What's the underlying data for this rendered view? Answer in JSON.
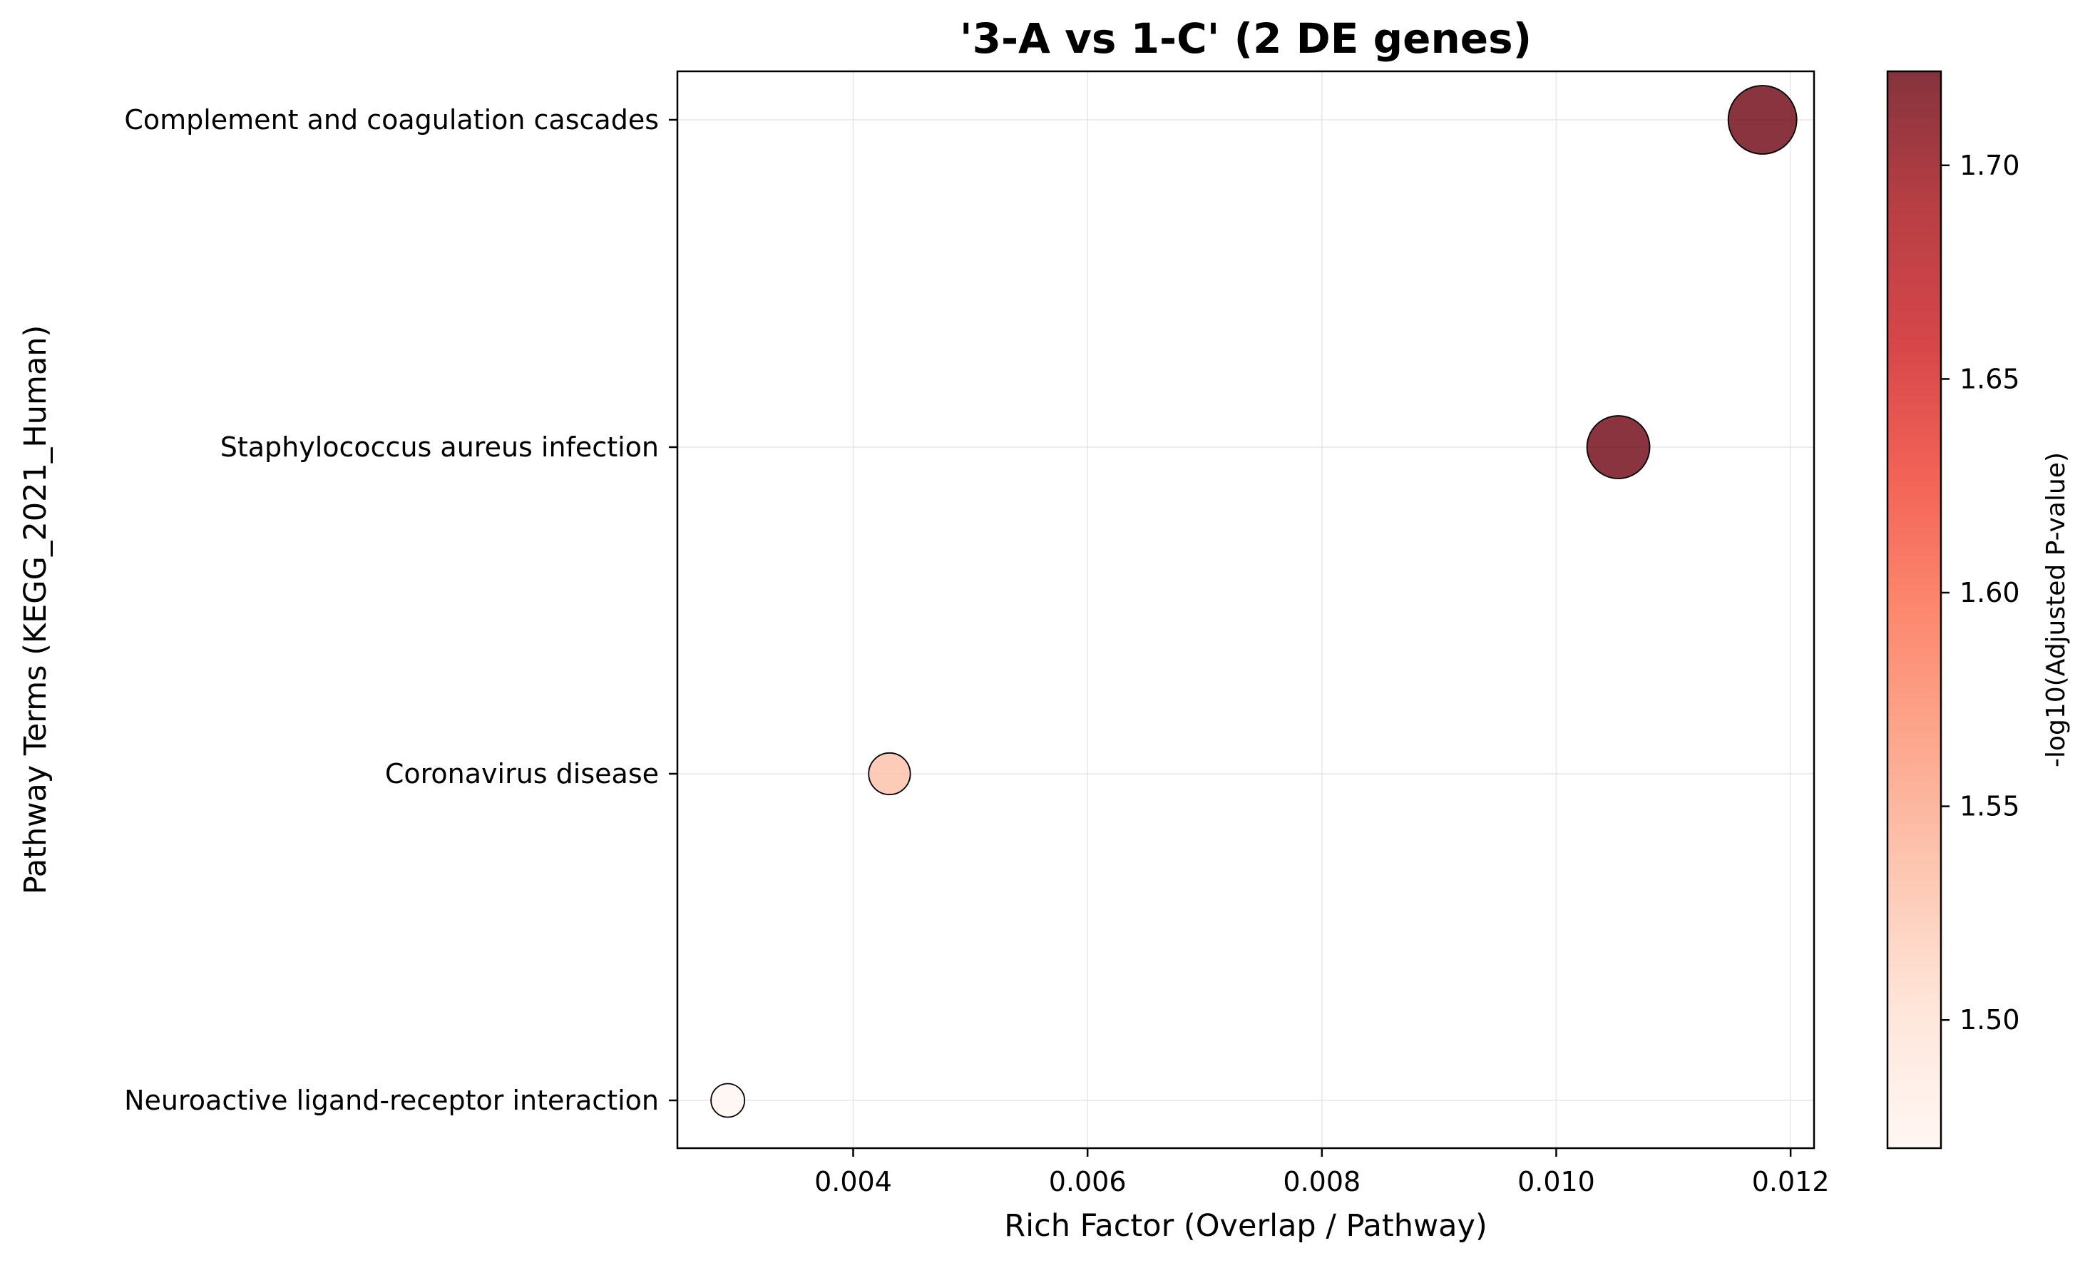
{
  "chart_data": {
    "type": "scatter",
    "title": "'3-A vs 1-C' (2 DE genes)",
    "xlabel": "Rich Factor (Overlap / Pathway)",
    "ylabel": "Pathway Terms (KEGG_2021_Human)",
    "xlim": [
      0.0025,
      0.0122
    ],
    "x_ticks": [
      0.004,
      0.006,
      0.008,
      0.01,
      0.012
    ],
    "x_tick_labels": [
      "0.004",
      "0.006",
      "0.008",
      "0.010",
      "0.012"
    ],
    "categories": [
      "Complement and coagulation cascades",
      "Staphylococcus aureus infection",
      "Coronavirus disease",
      "Neuroactive ligand-receptor interaction"
    ],
    "points": [
      {
        "term": "Complement and coagulation cascades",
        "x": 0.01176,
        "neg_log10_adj_p": 1.72,
        "size_rel": 1.0
      },
      {
        "term": "Staphylococcus aureus infection",
        "x": 0.01053,
        "neg_log10_adj_p": 1.72,
        "size_rel": 0.84
      },
      {
        "term": "Coronavirus disease",
        "x": 0.00431,
        "neg_log10_adj_p": 1.53,
        "size_rel": 0.37
      },
      {
        "term": "Neuroactive ligand-receptor interaction",
        "x": 0.00293,
        "neg_log10_adj_p": 1.47,
        "size_rel": 0.24
      }
    ],
    "colorbar": {
      "label": "-log10(Adjusted P-value)",
      "range": [
        1.47,
        1.722
      ],
      "ticks": [
        1.5,
        1.55,
        1.6,
        1.65,
        1.7
      ],
      "tick_labels": [
        "1.50",
        "1.55",
        "1.60",
        "1.65",
        "1.70"
      ],
      "colormap": [
        "#fff5f0",
        "#fee0d2",
        "#fcbba1",
        "#fc9272",
        "#fb6a4a",
        "#ef3b2c",
        "#cb181d",
        "#a50f15",
        "#67000d"
      ],
      "alpha": 0.8
    },
    "grid": true,
    "marker_edge_color": "#000000"
  }
}
